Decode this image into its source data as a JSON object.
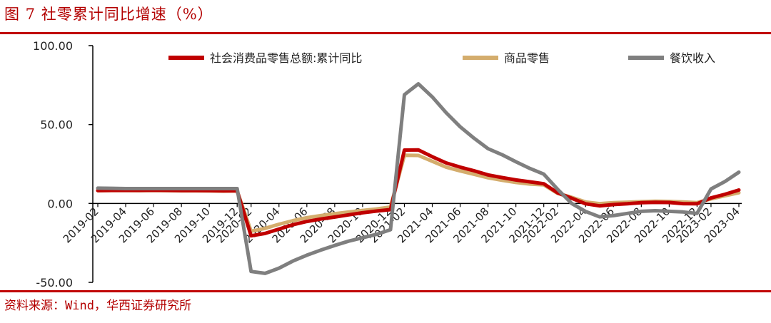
{
  "figure_title": "图 7  社零累计同比增速（%）",
  "source": "资料来源：Wind，华西证券研究所",
  "chart_data": {
    "type": "line",
    "title": "",
    "xlabel": "",
    "ylabel": "",
    "ylim": [
      -50,
      100
    ],
    "y_ticks": [
      "100.00",
      "50.00",
      "0.00",
      "-50.00"
    ],
    "y_tick_values": [
      100,
      50,
      0,
      -50
    ],
    "grid": false,
    "legend_position": "top",
    "x": [
      "2019-02",
      "2019-03",
      "2019-04",
      "2019-05",
      "2019-06",
      "2019-07",
      "2019-08",
      "2019-09",
      "2019-10",
      "2019-11",
      "2019-12",
      "2020-02",
      "2020-03",
      "2020-04",
      "2020-05",
      "2020-06",
      "2020-07",
      "2020-08",
      "2020-09",
      "2020-10",
      "2020-11",
      "2020-12",
      "2021-02",
      "2021-03",
      "2021-04",
      "2021-05",
      "2021-06",
      "2021-07",
      "2021-08",
      "2021-09",
      "2021-10",
      "2021-11",
      "2021-12",
      "2022-02",
      "2022-03",
      "2022-04",
      "2022-05",
      "2022-06",
      "2022-07",
      "2022-08",
      "2022-09",
      "2022-10",
      "2022-11",
      "2022-12",
      "2023-02",
      "2023-03",
      "2023-04"
    ],
    "x_tick_labels": [
      "2019-02",
      "2019-04",
      "2019-06",
      "2019-08",
      "2019-10",
      "2019-12",
      "2020-02",
      "2020-04",
      "2020-06",
      "2020-08",
      "2020-10",
      "2020-12",
      "2021-02",
      "2021-04",
      "2021-06",
      "2021-08",
      "2021-10",
      "2021-12",
      "2022-02",
      "2022-04",
      "2022-06",
      "2022-08",
      "2022-10",
      "2022-12",
      "2023-02",
      "2023-04"
    ],
    "series": [
      {
        "name": "社会消费品零售总额:累计同比",
        "color": "#c00000",
        "values": [
          8.2,
          8.3,
          8.3,
          8.3,
          8.4,
          8.3,
          8.2,
          8.2,
          8.1,
          8.0,
          8.0,
          -20.5,
          -19.0,
          -16.2,
          -13.5,
          -11.4,
          -9.9,
          -8.6,
          -7.2,
          -5.9,
          -4.8,
          -3.9,
          33.8,
          33.9,
          29.6,
          25.7,
          23.0,
          20.7,
          18.1,
          16.4,
          14.9,
          13.7,
          12.5,
          6.7,
          3.3,
          -0.2,
          -1.5,
          -0.7,
          -0.2,
          0.5,
          0.7,
          0.6,
          -0.1,
          -0.2,
          3.5,
          5.8,
          8.5
        ]
      },
      {
        "name": "商品零售",
        "color": "#d4ad6d",
        "values": [
          8.1,
          8.2,
          8.2,
          8.1,
          8.2,
          8.1,
          8.0,
          8.0,
          7.9,
          7.8,
          7.9,
          -17.6,
          -15.8,
          -13.2,
          -10.9,
          -9.0,
          -7.7,
          -6.5,
          -5.4,
          -4.4,
          -3.5,
          -2.3,
          30.5,
          30.4,
          26.7,
          23.0,
          20.6,
          18.5,
          16.3,
          14.7,
          13.3,
          12.3,
          11.8,
          6.4,
          3.9,
          0.9,
          -0.1,
          0.5,
          0.8,
          1.2,
          1.4,
          1.3,
          0.9,
          0.5,
          2.9,
          4.9,
          6.8
        ]
      },
      {
        "name": "餐饮收入",
        "color": "#7f7f7f",
        "values": [
          9.7,
          9.6,
          9.4,
          9.4,
          9.4,
          9.4,
          9.4,
          9.4,
          9.4,
          9.4,
          9.4,
          -43.1,
          -44.3,
          -41.0,
          -36.5,
          -32.8,
          -29.6,
          -26.6,
          -23.9,
          -21.7,
          -19.6,
          -16.6,
          68.9,
          75.8,
          67.5,
          57.5,
          48.6,
          41.3,
          34.7,
          30.9,
          26.4,
          22.2,
          18.6,
          8.9,
          0.0,
          -5.1,
          -8.5,
          -7.7,
          -6.3,
          -5.0,
          -4.6,
          -5.0,
          -5.4,
          -6.3,
          9.2,
          13.9,
          19.8
        ]
      }
    ]
  }
}
